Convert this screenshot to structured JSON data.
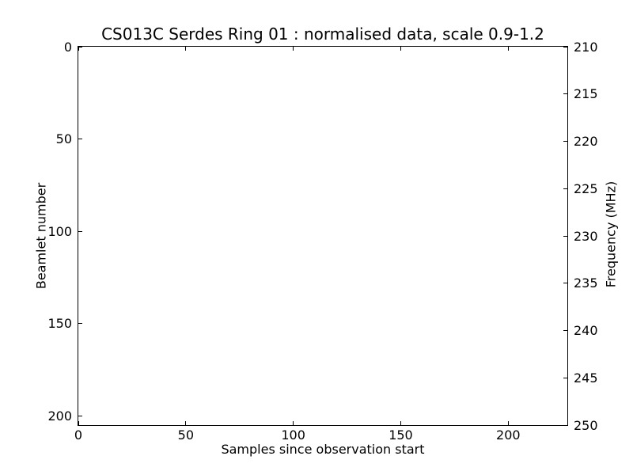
{
  "figure": {
    "background_color": "#ffffff",
    "foreground_color": "#000000"
  },
  "chart_data": {
    "type": "heatmap",
    "title": "CS013C Serdes Ring 01 : normalised data, scale 0.9-1.2",
    "xlabel": "Samples since observation start",
    "ylabel_left": "Beamlet number",
    "ylabel_right": "Frequency (MHz)",
    "x_ticks": [
      0,
      50,
      100,
      150,
      200
    ],
    "xlim": [
      0,
      227.5
    ],
    "y_left_ticks": [
      0,
      50,
      100,
      150,
      200
    ],
    "ylim_left": [
      0,
      205
    ],
    "y_left_inverted": true,
    "y_right_ticks": [
      210,
      215,
      220,
      225,
      230,
      235,
      240,
      245,
      250
    ],
    "ylim_right": [
      210,
      250
    ],
    "y_right_increases_downward": true,
    "grid": false,
    "legend": null,
    "values": [],
    "plot_area_empty": true,
    "color_scale": "0.9-1.2 (normalised), rendered blank white"
  }
}
